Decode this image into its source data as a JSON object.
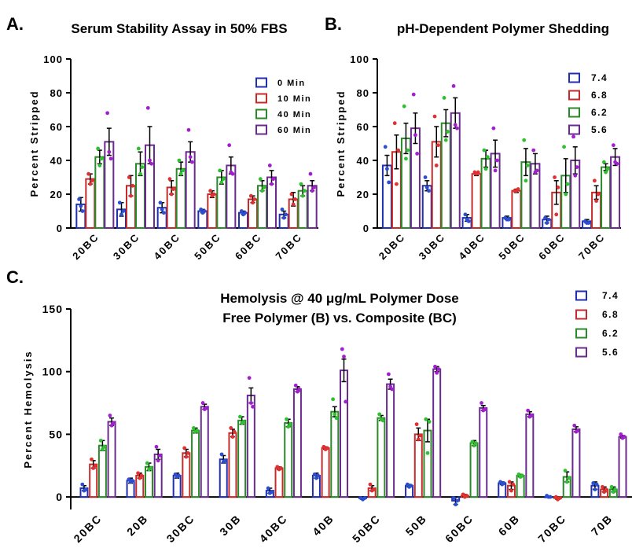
{
  "colors": {
    "c1": "#1f2fb0",
    "c2": "#c62a2a",
    "c3": "#2a8a2a",
    "c4": "#6b2a8e",
    "d1": "#2a4fd0",
    "d2": "#e03030",
    "d3": "#2fc02f",
    "d4": "#a21fd0"
  },
  "chart_data": [
    {
      "panel_label": "A.",
      "type": "bar",
      "title": "Serum Stability Assay in 50% FBS",
      "ylabel": "Percent Stripped",
      "ylim": [
        0,
        100
      ],
      "yticks": [
        0,
        20,
        40,
        60,
        80,
        100
      ],
      "categories": [
        "20BC",
        "30BC",
        "40BC",
        "50BC",
        "60BC",
        "70BC"
      ],
      "legend_position": "right",
      "series": [
        {
          "name": "0 Min",
          "values": [
            14,
            11,
            12,
            10,
            9,
            8
          ],
          "errors": [
            4,
            4,
            3,
            1,
            1,
            2
          ],
          "points": [
            [
              17,
              13,
              10
            ],
            [
              15,
              8,
              10
            ],
            [
              15,
              11,
              9
            ],
            [
              11,
              9,
              10
            ],
            [
              10,
              8,
              9
            ],
            [
              11,
              6,
              8
            ]
          ]
        },
        {
          "name": "10 Min",
          "values": [
            29,
            25,
            24,
            20,
            17,
            17
          ],
          "errors": [
            3,
            6,
            4,
            2,
            2,
            4
          ],
          "points": [
            [
              32,
              26,
              28
            ],
            [
              30,
              19,
              25
            ],
            [
              29,
              20,
              23
            ],
            [
              22,
              19,
              20
            ],
            [
              19,
              15,
              17
            ],
            [
              20,
              14,
              17
            ]
          ]
        },
        {
          "name": "40 Min",
          "values": [
            42,
            38,
            35,
            30,
            25,
            22
          ],
          "errors": [
            4,
            7,
            4,
            4,
            3,
            3
          ],
          "points": [
            [
              47,
              37,
              41
            ],
            [
              47,
              32,
              36
            ],
            [
              40,
              32,
              34
            ],
            [
              34,
              27,
              29
            ],
            [
              29,
              22,
              24
            ],
            [
              26,
              19,
              22
            ]
          ]
        },
        {
          "name": "60 Min",
          "values": [
            51,
            49,
            45,
            37,
            30,
            25
          ],
          "errors": [
            8,
            11,
            6,
            5,
            4,
            3
          ],
          "points": [
            [
              68,
              45,
              41
            ],
            [
              71,
              40,
              38
            ],
            [
              58,
              42,
              39
            ],
            [
              49,
              33,
              32
            ],
            [
              37,
              26,
              29
            ],
            [
              32,
              22,
              24
            ]
          ]
        }
      ]
    },
    {
      "panel_label": "B.",
      "type": "bar",
      "title": "pH-Dependent Polymer Shedding",
      "ylabel": "Percent Stripped",
      "ylim": [
        0,
        100
      ],
      "yticks": [
        0,
        20,
        40,
        60,
        80,
        100
      ],
      "categories": [
        "20BC",
        "30BC",
        "40BC",
        "50BC",
        "60BC",
        "70BC"
      ],
      "legend_position": "right",
      "series": [
        {
          "name": "7.4",
          "values": [
            37,
            25,
            6,
            6,
            5,
            4
          ],
          "errors": [
            6,
            3,
            2,
            1,
            2,
            1
          ],
          "points": [
            [
              48,
              35,
              27
            ],
            [
              30,
              24,
              22
            ],
            [
              8,
              5,
              4
            ],
            [
              6,
              5,
              5
            ],
            [
              6,
              3,
              5
            ],
            [
              4,
              3,
              3
            ]
          ]
        },
        {
          "name": "6.8",
          "values": [
            45,
            51,
            32,
            22,
            21,
            21
          ],
          "errors": [
            10,
            9,
            1,
            1,
            7,
            4
          ],
          "points": [
            [
              62,
              26,
              46
            ],
            [
              66,
              37,
              49
            ],
            [
              33,
              32,
              33
            ],
            [
              22,
              22,
              23
            ],
            [
              30,
              8,
              24
            ],
            [
              28,
              16,
              20
            ]
          ]
        },
        {
          "name": "6.2",
          "values": [
            53,
            62,
            41,
            39,
            31,
            36
          ],
          "errors": [
            9,
            8,
            5,
            8,
            10,
            2
          ],
          "points": [
            [
              72,
              41,
              46
            ],
            [
              77,
              52,
              57
            ],
            [
              46,
              35,
              42
            ],
            [
              52,
              28,
              37
            ],
            [
              48,
              20,
              26
            ],
            [
              39,
              33,
              35
            ]
          ]
        },
        {
          "name": "5.6",
          "values": [
            59,
            68,
            44,
            38,
            40,
            42
          ],
          "errors": [
            9,
            9,
            8,
            6,
            8,
            5
          ],
          "points": [
            [
              79,
              55,
              44
            ],
            [
              84,
              61,
              59
            ],
            [
              59,
              34,
              40
            ],
            [
              46,
              33,
              34
            ],
            [
              54,
              31,
              36
            ],
            [
              49,
              39,
              38
            ]
          ]
        }
      ]
    },
    {
      "panel_label": "C.",
      "type": "bar",
      "title": "Hemolysis @ 40 μg/mL Polymer Dose",
      "subtitle": "Free Polymer (B) vs. Composite (BC)",
      "ylabel": "Percent Hemolysis",
      "ylim": [
        -10,
        150
      ],
      "yticks": [
        0,
        50,
        100,
        150
      ],
      "categories": [
        "20BC",
        "20B",
        "30BC",
        "30B",
        "40BC",
        "40B",
        "50BC",
        "50B",
        "60BC",
        "60B",
        "70BC",
        "70B"
      ],
      "legend_position": "top-right",
      "series": [
        {
          "name": "7.4",
          "values": [
            7,
            13,
            17,
            30,
            5,
            17,
            -1,
            9,
            -3,
            11,
            0,
            9
          ],
          "errors": [
            2,
            2,
            2,
            3,
            2,
            2,
            1,
            1,
            3,
            1,
            0,
            3
          ],
          "points": [
            [
              10,
              5,
              6
            ],
            [
              14,
              12,
              13
            ],
            [
              18,
              16,
              17
            ],
            [
              34,
              28,
              29
            ],
            [
              7,
              3,
              4
            ],
            [
              18,
              15,
              17
            ],
            [
              -1,
              -2,
              -1
            ],
            [
              10,
              8,
              9
            ],
            [
              -1,
              -6,
              -3
            ],
            [
              12,
              10,
              11
            ],
            [
              1,
              0,
              0
            ],
            [
              11,
              6,
              10
            ]
          ]
        },
        {
          "name": "6.8",
          "values": [
            26,
            17,
            35,
            51,
            23,
            39,
            7,
            50,
            1,
            9,
            -1,
            6
          ],
          "errors": [
            3,
            2,
            3,
            3,
            1,
            1,
            2,
            5,
            1,
            3,
            1,
            2
          ],
          "points": [
            [
              30,
              23,
              25
            ],
            [
              19,
              15,
              17
            ],
            [
              39,
              32,
              35
            ],
            [
              55,
              48,
              52
            ],
            [
              24,
              22,
              23
            ],
            [
              40,
              38,
              39
            ],
            [
              10,
              5,
              6
            ],
            [
              58,
              46,
              49
            ],
            [
              2,
              0,
              1
            ],
            [
              12,
              5,
              10
            ],
            [
              0,
              -2,
              -1
            ],
            [
              8,
              4,
              6
            ]
          ]
        },
        {
          "name": "6.2",
          "values": [
            41,
            24,
            53,
            61,
            59,
            68,
            63,
            53,
            43,
            17,
            16,
            6
          ],
          "errors": [
            4,
            3,
            2,
            3,
            3,
            4,
            2,
            9,
            2,
            1,
            4,
            2
          ],
          "points": [
            [
              45,
              38,
              40
            ],
            [
              27,
              22,
              23
            ],
            [
              55,
              52,
              53
            ],
            [
              64,
              59,
              60
            ],
            [
              62,
              56,
              58
            ],
            [
              78,
              66,
              63
            ],
            [
              66,
              62,
              61
            ],
            [
              62,
              35,
              60
            ],
            [
              44,
              41,
              43
            ],
            [
              18,
              16,
              17
            ],
            [
              21,
              12,
              15
            ],
            [
              8,
              4,
              6
            ]
          ]
        },
        {
          "name": "5.6",
          "values": [
            60,
            34,
            72,
            81,
            86,
            101,
            90,
            102,
            71,
            66,
            54,
            48
          ],
          "errors": [
            3,
            4,
            2,
            6,
            2,
            9,
            4,
            2,
            2,
            2,
            2,
            1
          ],
          "points": [
            [
              65,
              57,
              59
            ],
            [
              40,
              29,
              33
            ],
            [
              75,
              70,
              71
            ],
            [
              95,
              75,
              72
            ],
            [
              89,
              84,
              86
            ],
            [
              118,
              112,
              76
            ],
            [
              98,
              88,
              86
            ],
            [
              104,
              99,
              102
            ],
            [
              75,
              69,
              70
            ],
            [
              69,
              64,
              65
            ],
            [
              57,
              52,
              53
            ],
            [
              50,
              47,
              48
            ]
          ]
        }
      ]
    }
  ]
}
